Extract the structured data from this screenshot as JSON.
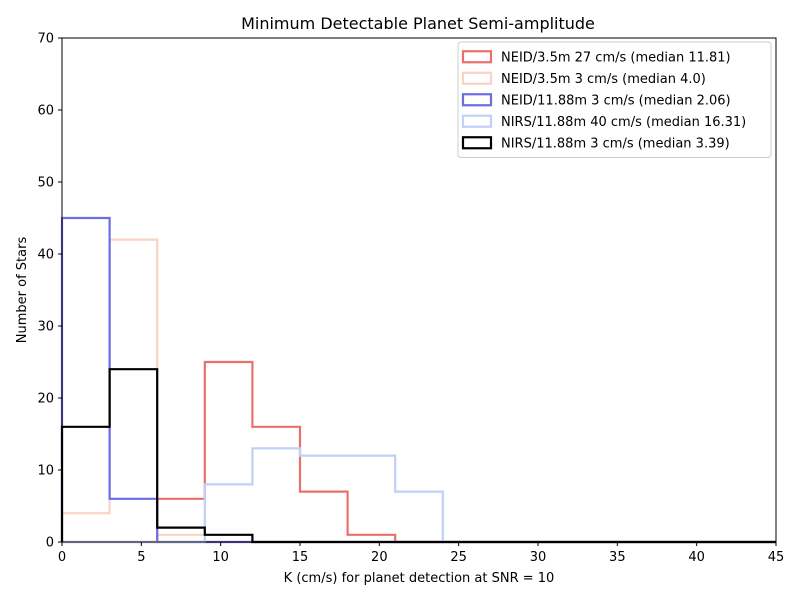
{
  "chart_data": {
    "type": "histogram",
    "title": "Minimum Detectable Planet Semi-amplitude",
    "xlabel": "K (cm/s) for planet detection at SNR = 10",
    "ylabel": "Number of Stars",
    "xlim": [
      0,
      45
    ],
    "ylim": [
      0,
      70
    ],
    "xticks": [
      0,
      5,
      10,
      15,
      20,
      25,
      30,
      35,
      40,
      45
    ],
    "yticks": [
      0,
      10,
      20,
      30,
      40,
      50,
      60,
      70
    ],
    "bin_edges": [
      0,
      3,
      6,
      9,
      12,
      15,
      18,
      21,
      24,
      27,
      30,
      33,
      36,
      39,
      42,
      45
    ],
    "legend_position": "upper right",
    "grid": false,
    "series": [
      {
        "name": "NEID/3.5m 27 cm/s (median 11.81)",
        "color": "#e8706b",
        "counts": [
          0,
          0,
          6,
          25,
          16,
          7,
          1,
          0,
          0,
          0,
          0,
          0,
          0,
          0,
          0
        ]
      },
      {
        "name": "NEID/3.5m 3 cm/s (median 4.0)",
        "color": "#f9d4c2",
        "counts": [
          4,
          42,
          1,
          0,
          0,
          0,
          0,
          0,
          0,
          0,
          0,
          0,
          0,
          0,
          0
        ]
      },
      {
        "name": "NEID/11.88m 3 cm/s (median 2.06)",
        "color": "#6d6de3",
        "counts": [
          45,
          6,
          0,
          0,
          0,
          0,
          0,
          0,
          0,
          0,
          0,
          0,
          0,
          0,
          0
        ]
      },
      {
        "name": "NIRS/11.88m 40 cm/s (median 16.31)",
        "color": "#c1cff9",
        "counts": [
          0,
          0,
          0,
          8,
          13,
          12,
          12,
          7,
          0,
          0,
          0,
          0,
          0,
          0,
          0
        ]
      },
      {
        "name": "NIRS/11.88m 3 cm/s (median 3.39)",
        "color": "#000000",
        "counts": [
          16,
          24,
          2,
          1,
          0,
          0,
          0,
          0,
          0,
          0,
          0,
          0,
          0,
          0,
          0
        ]
      }
    ]
  }
}
